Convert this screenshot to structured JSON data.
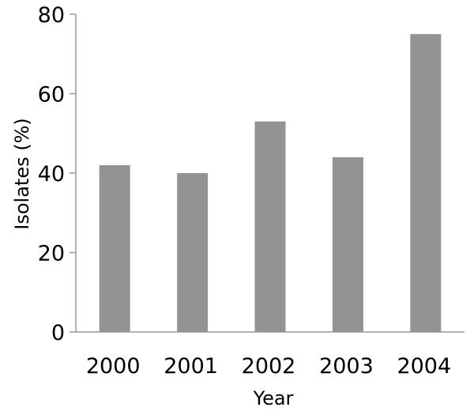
{
  "chart_data": {
    "type": "bar",
    "categories": [
      "2000",
      "2001",
      "2002",
      "2003",
      "2004"
    ],
    "values": [
      42,
      40,
      53,
      44,
      75
    ],
    "title": "",
    "xlabel": "Year",
    "ylabel": "Isolates  (%)",
    "ylim": [
      0,
      80
    ],
    "yticks": [
      "0",
      "20",
      "40",
      "60",
      "80"
    ],
    "grid": false,
    "bar_color": "#939393",
    "axis_color": "#999999"
  }
}
